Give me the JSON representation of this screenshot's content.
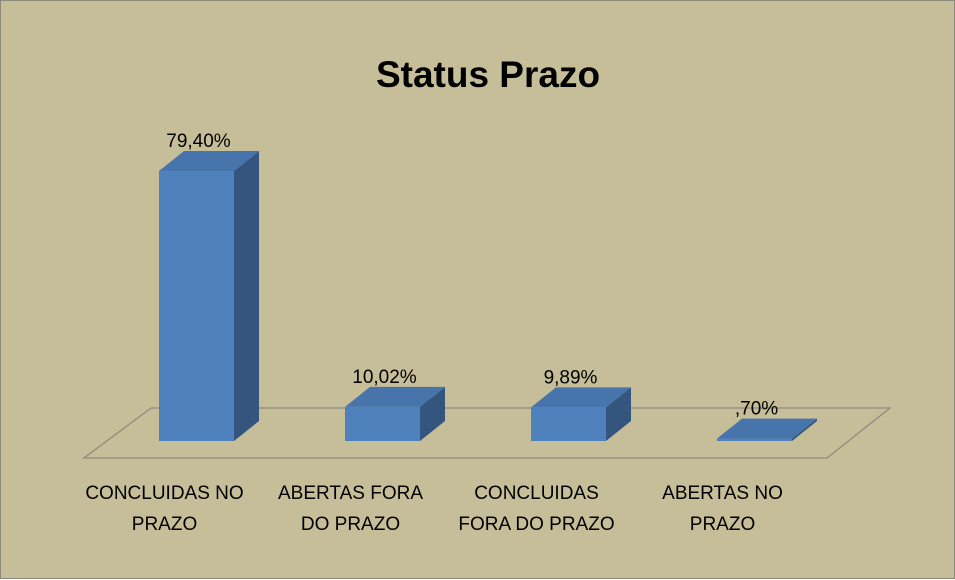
{
  "chart_data": {
    "type": "bar",
    "title": "Status Prazo",
    "categories": [
      "CONCLUIDAS NO PRAZO",
      "ABERTAS FORA DO PRAZO",
      "CONCLUIDAS FORA DO PRAZO",
      "ABERTAS NO PRAZO"
    ],
    "values": [
      79.4,
      10.02,
      9.89,
      0.7
    ],
    "value_labels": [
      "79,40%",
      "10,02%",
      "9,89%",
      ",70%"
    ],
    "color": "#4f81bd"
  }
}
